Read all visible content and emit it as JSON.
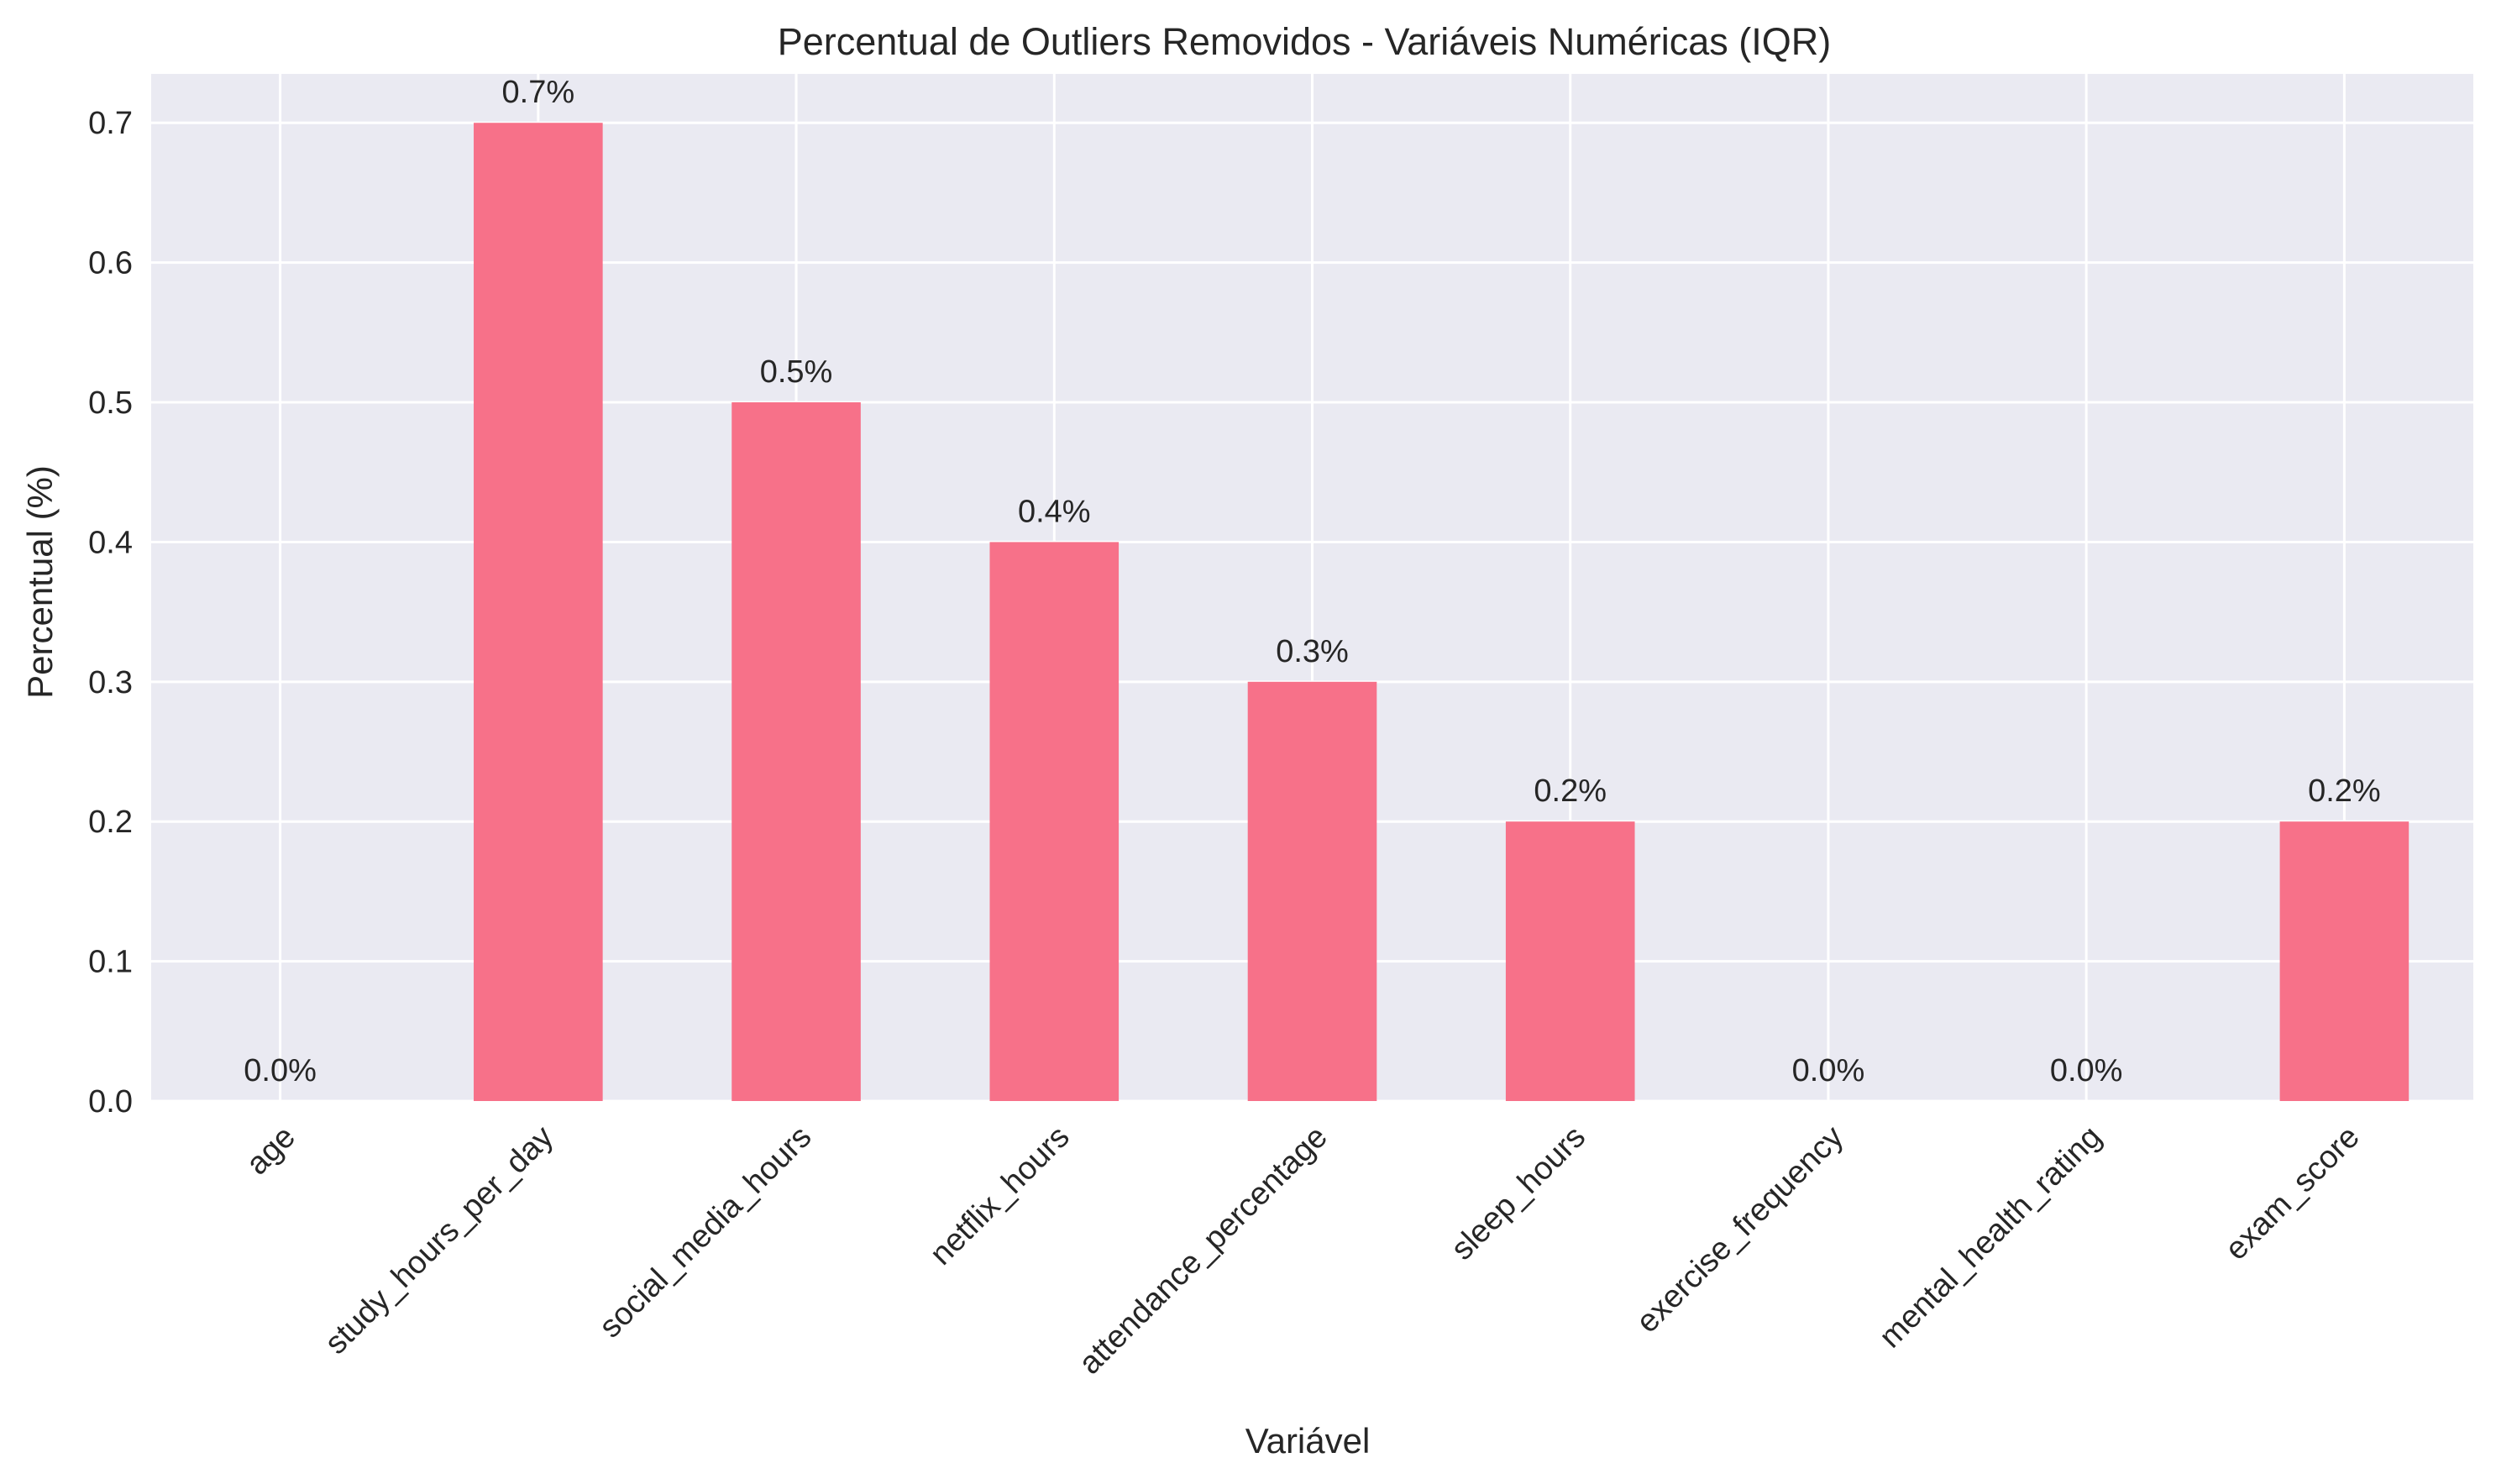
{
  "chart_data": {
    "type": "bar",
    "title": "Percentual de Outliers Removidos - Variáveis Numéricas (IQR)",
    "xlabel": "Variável",
    "ylabel": "Percentual (%)",
    "categories": [
      "age",
      "study_hours_per_day",
      "social_media_hours",
      "netflix_hours",
      "attendance_percentage",
      "sleep_hours",
      "exercise_frequency",
      "mental_health_rating",
      "exam_score"
    ],
    "values": [
      0.0,
      0.7,
      0.5,
      0.4,
      0.3,
      0.2,
      0.0,
      0.0,
      0.2
    ],
    "value_labels": [
      "0.0%",
      "0.7%",
      "0.5%",
      "0.4%",
      "0.3%",
      "0.2%",
      "0.0%",
      "0.0%",
      "0.2%"
    ],
    "ylim": [
      0,
      0.735
    ],
    "yticks": [
      0.0,
      0.1,
      0.2,
      0.3,
      0.4,
      0.5,
      0.6,
      0.7
    ],
    "ytick_labels": [
      "0.0",
      "0.1",
      "0.2",
      "0.3",
      "0.4",
      "0.5",
      "0.6",
      "0.7"
    ],
    "grid": true,
    "colors": {
      "bar": "#f77189",
      "plot_background": "#eaeaf2",
      "grid": "#ffffff",
      "text": "#262626"
    }
  }
}
